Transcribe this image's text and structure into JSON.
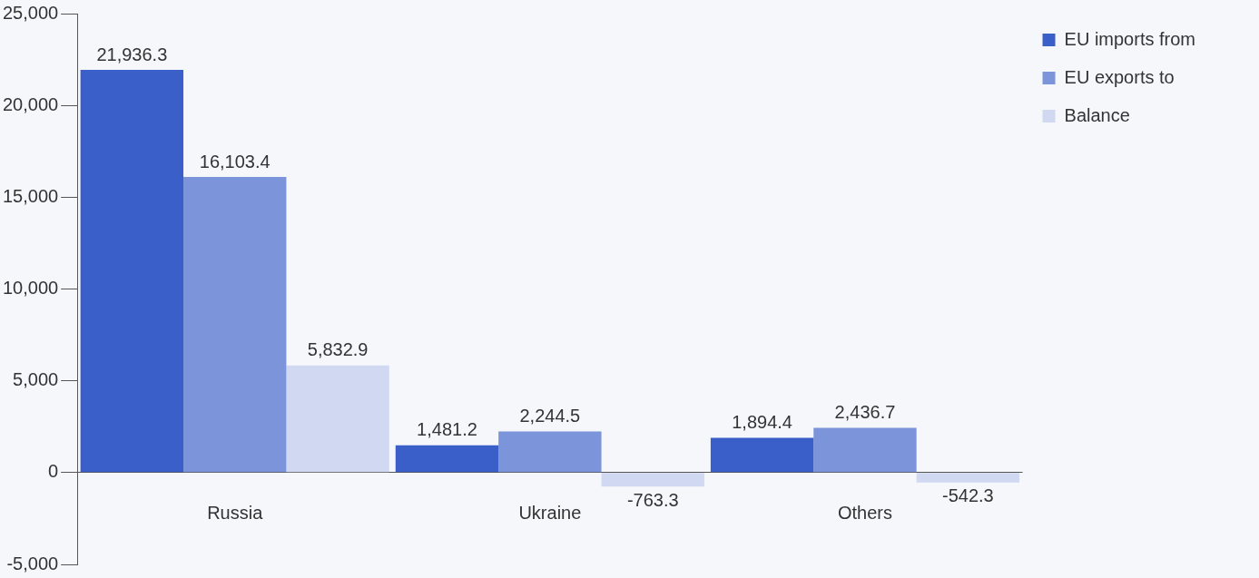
{
  "chart_data": {
    "type": "bar",
    "categories": [
      "Russia",
      "Ukraine",
      "Others"
    ],
    "series": [
      {
        "name": "EU imports from",
        "color": "#3b5fc9",
        "values": [
          21936.3,
          1481.2,
          1894.4
        ],
        "value_labels": [
          "21,936.3",
          "1,481.2",
          "1,894.4"
        ]
      },
      {
        "name": "EU exports to",
        "color": "#7c94da",
        "values": [
          16103.4,
          2244.5,
          2436.7
        ],
        "value_labels": [
          "16,103.4",
          "2,244.5",
          "2,436.7"
        ]
      },
      {
        "name": "Balance",
        "color": "#d0d9f1",
        "values": [
          5832.9,
          -763.3,
          -542.3
        ],
        "value_labels": [
          "5,832.9",
          "-763.3",
          "-542.3"
        ]
      }
    ],
    "ylim": [
      -5000,
      25000
    ],
    "yticks": [
      {
        "value": -5000,
        "label": "-5,000"
      },
      {
        "value": 0,
        "label": "0"
      },
      {
        "value": 5000,
        "label": "5,000"
      },
      {
        "value": 10000,
        "label": "10,000"
      },
      {
        "value": 15000,
        "label": "15,000"
      },
      {
        "value": 20000,
        "label": "20,000"
      },
      {
        "value": 25000,
        "label": "25,000"
      }
    ],
    "grid": false,
    "legend": "top right"
  }
}
